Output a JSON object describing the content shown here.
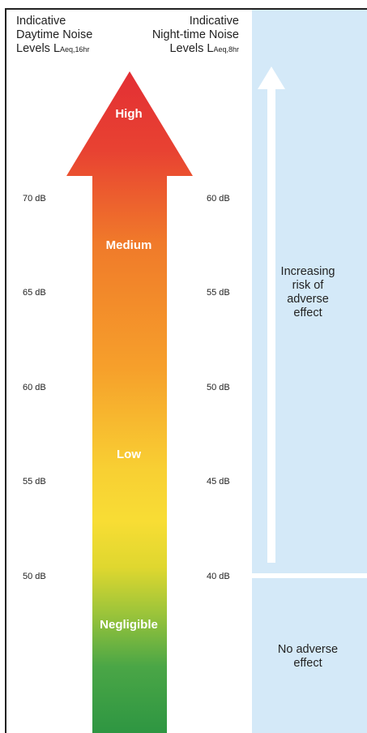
{
  "header": {
    "day_line1": "Indicative",
    "day_line2": "Daytime Noise",
    "day_line3": "Levels L",
    "day_sub": "Aeq,16hr",
    "night_line1": "Indicative",
    "night_line2": "Night-time Noise",
    "night_line3": "Levels L",
    "night_sub": "Aeq,8hr"
  },
  "day_ticks": [
    "70 dB",
    "65 dB",
    "60 dB",
    "55 dB",
    "50 dB"
  ],
  "night_ticks": [
    "60 dB",
    "55 dB",
    "50 dB",
    "45 dB",
    "40 dB"
  ],
  "levels": [
    "High",
    "Medium",
    "Low",
    "Negligible"
  ],
  "panel": {
    "increasing_line1": "Increasing",
    "increasing_line2": "risk of",
    "increasing_line3": "adverse",
    "increasing_line4": "effect",
    "none_line1": "No adverse",
    "none_line2": "effect"
  },
  "colors": {
    "panel": "#d4e9f8",
    "high": "#e53935",
    "medium": "#f0842a",
    "low": "#f7d832",
    "negligible": "#2e9a47"
  }
}
